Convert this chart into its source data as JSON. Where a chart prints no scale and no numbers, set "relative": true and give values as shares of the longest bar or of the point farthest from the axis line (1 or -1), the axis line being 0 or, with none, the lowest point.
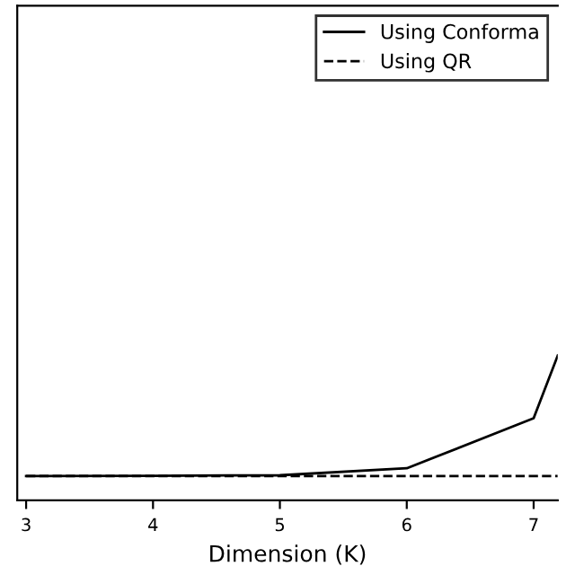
{
  "chart_data": {
    "type": "line",
    "relative": true,
    "xlabel": "Dimension (K)",
    "x": [
      3,
      4,
      5,
      6,
      7,
      7.19
    ],
    "xlim": [
      2.93,
      7.19
    ],
    "xticks": [
      3,
      4,
      5,
      6,
      7
    ],
    "series": [
      {
        "name": "Using Conforma",
        "color": "#000000",
        "line_style": "solid",
        "values": [
          0,
          0.003,
          0.007,
          0.065,
          0.48,
          1
        ]
      },
      {
        "name": "Using QR",
        "color": "#000000",
        "line_style": "dashed",
        "values": [
          0,
          0,
          0,
          0,
          0,
          0
        ]
      }
    ],
    "legend": "top right",
    "grid": false
  }
}
